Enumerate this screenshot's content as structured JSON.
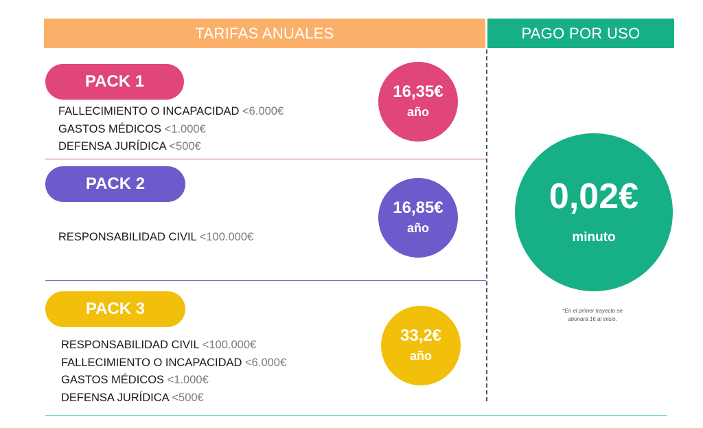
{
  "headers": {
    "annual": "TARIFAS ANUALES",
    "usage": "PAGO POR USO"
  },
  "packs": [
    {
      "name": "PACK 1",
      "price": "16,35€",
      "period": "año",
      "features": [
        {
          "label": "FALLECIMIENTO O INCAPACIDAD",
          "limit": "<6.000€"
        },
        {
          "label": "GASTOS MÉDICOS",
          "limit": "<1.000€"
        },
        {
          "label": "DEFENSA JURÍDICA",
          "limit": "<500€"
        }
      ]
    },
    {
      "name": "PACK 2",
      "price": "16,85€",
      "period": "año",
      "features": [
        {
          "label": "RESPONSABILIDAD CIVIL",
          "limit": "<100.000€"
        }
      ]
    },
    {
      "name": "PACK 3",
      "price": "33,2€",
      "period": "año",
      "features": [
        {
          "label": "RESPONSABILIDAD CIVIL",
          "limit": "<100.000€"
        },
        {
          "label": "FALLECIMIENTO O INCAPACIDAD",
          "limit": "<6.000€"
        },
        {
          "label": "GASTOS MÉDICOS",
          "limit": "<1.000€"
        },
        {
          "label": "DEFENSA JURÍDICA",
          "limit": "<500€"
        }
      ]
    }
  ],
  "usage": {
    "price": "0,02€",
    "unit": "minuto",
    "note_line1": "*En el primer trayecto se",
    "note_line2": "abonará 1€ al inicio."
  },
  "colors": {
    "annual_header": "#fbb06a",
    "usage_header": "#17b086",
    "pack1": "#e0457b",
    "pack2": "#6e5bcb",
    "pack3": "#f2c00a",
    "usage_circle": "#17b086"
  }
}
